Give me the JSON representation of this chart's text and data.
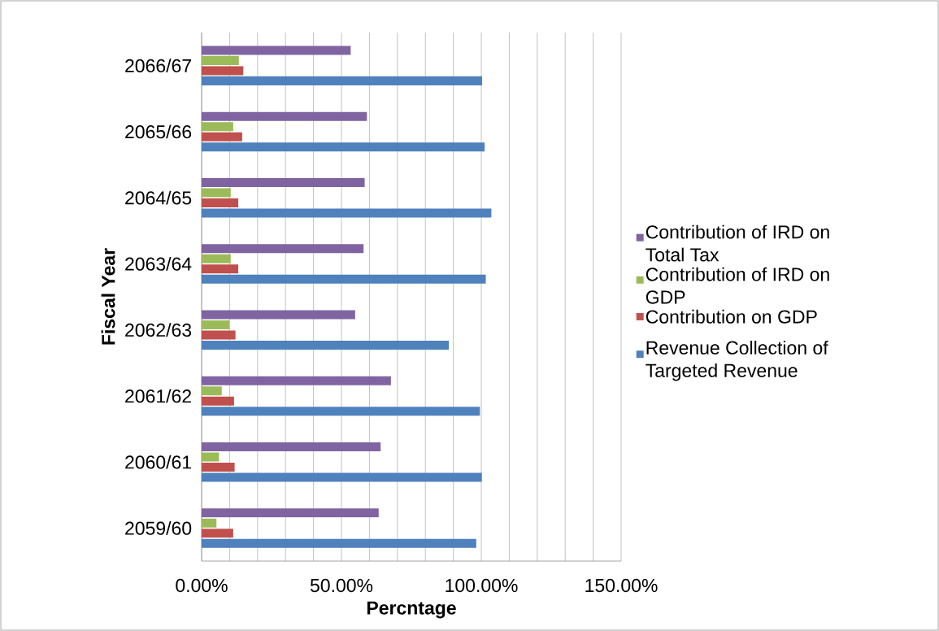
{
  "chart_data": {
    "type": "bar",
    "orientation": "horizontal",
    "xlabel": "Percntage",
    "ylabel": "Fiscal Year",
    "categories": [
      "2066/67",
      "2065/66",
      "2064/65",
      "2063/64",
      "2062/63",
      "2061/62",
      "2060/61",
      "2059/60"
    ],
    "series": [
      {
        "name": "Contribution of IRD on Total Tax",
        "color": "#8064a2",
        "values": [
          53.3,
          59.1,
          58.3,
          57.9,
          54.9,
          67.7,
          64.0,
          63.3
        ]
      },
      {
        "name": "Contribution of IRD on GDP",
        "color": "#9bbb59",
        "values": [
          13.3,
          11.3,
          10.4,
          10.4,
          9.9,
          7.2,
          6.2,
          5.3
        ]
      },
      {
        "name": "Contribution on GDP",
        "color": "#c0504d",
        "values": [
          14.9,
          14.5,
          13.1,
          13.1,
          12.1,
          11.6,
          11.8,
          11.3
        ]
      },
      {
        "name": "Revenue Collection of Targeted Revenue",
        "color": "#4f81bd",
        "values": [
          100.3,
          101.2,
          103.6,
          101.6,
          88.4,
          99.5,
          100.2,
          98.2
        ]
      }
    ],
    "xlim": [
      0,
      150
    ],
    "xticks": [
      {
        "value": 0,
        "label": "0.00%"
      },
      {
        "value": 10,
        "label": null
      },
      {
        "value": 20,
        "label": null
      },
      {
        "value": 30,
        "label": null
      },
      {
        "value": 40,
        "label": null
      },
      {
        "value": 50,
        "label": "50.00%"
      },
      {
        "value": 60,
        "label": null
      },
      {
        "value": 70,
        "label": null
      },
      {
        "value": 80,
        "label": null
      },
      {
        "value": 90,
        "label": null
      },
      {
        "value": 100,
        "label": "100.00%"
      },
      {
        "value": 110,
        "label": null
      },
      {
        "value": 120,
        "label": null
      },
      {
        "value": 130,
        "label": null
      },
      {
        "value": 140,
        "label": null
      },
      {
        "value": 150,
        "label": "150.00%"
      }
    ],
    "grid": "x",
    "legend": "right"
  }
}
